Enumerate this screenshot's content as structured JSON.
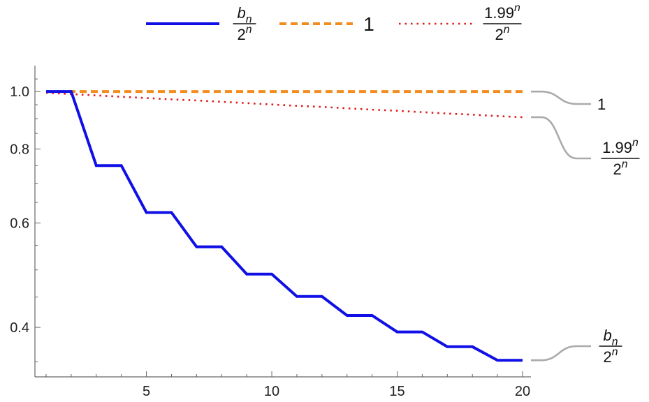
{
  "chart_data": {
    "type": "line",
    "title": "",
    "xlabel": "",
    "ylabel": "",
    "xlim": [
      1,
      20
    ],
    "ylim": [
      0.33,
      1.1
    ],
    "y_scale": "log",
    "grid": false,
    "legend_position": "top",
    "x_ticks": [
      "5",
      "10",
      "15",
      "20"
    ],
    "y_ticks": [
      "0.4",
      "0.6",
      "0.8",
      "1.0"
    ],
    "series": [
      {
        "key": "bn",
        "legend_num": "b",
        "legend_num_sub": "n",
        "legend_den": "2",
        "legend_den_sup": "n",
        "line_label_num": "b",
        "line_label_num_sub": "n",
        "line_label_den": "2",
        "line_label_den_sup": "n",
        "color": "#1010e6",
        "style": "solid",
        "step": true,
        "x": [
          1,
          2,
          3,
          4,
          5,
          6,
          7,
          8,
          9,
          10,
          11,
          12,
          13,
          14,
          15,
          16,
          17,
          18,
          19,
          20
        ],
        "y": [
          1,
          1,
          0.75,
          0.75,
          0.625,
          0.625,
          0.547,
          0.547,
          0.492,
          0.492,
          0.451,
          0.451,
          0.419,
          0.419,
          0.393,
          0.393,
          0.371,
          0.371,
          0.352,
          0.352
        ]
      },
      {
        "key": "one",
        "legend_text": "1",
        "line_label_text": "1",
        "color": "#f28c1e",
        "style": "dashed",
        "step": false,
        "x": [
          1,
          20
        ],
        "y": [
          1,
          1
        ]
      },
      {
        "key": "p199",
        "legend_num": "1.99",
        "legend_num_sup": "n",
        "legend_den": "2",
        "legend_den_sup": "n",
        "line_label_num": "1.99",
        "line_label_num_sup": "n",
        "line_label_den": "2",
        "line_label_den_sup": "n",
        "color": "#e01818",
        "style": "dotted",
        "step": false,
        "x": [
          1,
          2,
          3,
          4,
          5,
          6,
          7,
          8,
          9,
          10,
          11,
          12,
          13,
          14,
          15,
          16,
          17,
          18,
          19,
          20
        ],
        "y": [
          0.995,
          0.99,
          0.985,
          0.98,
          0.975,
          0.97,
          0.966,
          0.961,
          0.956,
          0.951,
          0.946,
          0.942,
          0.937,
          0.932,
          0.928,
          0.923,
          0.918,
          0.914,
          0.909,
          0.905
        ]
      }
    ]
  }
}
